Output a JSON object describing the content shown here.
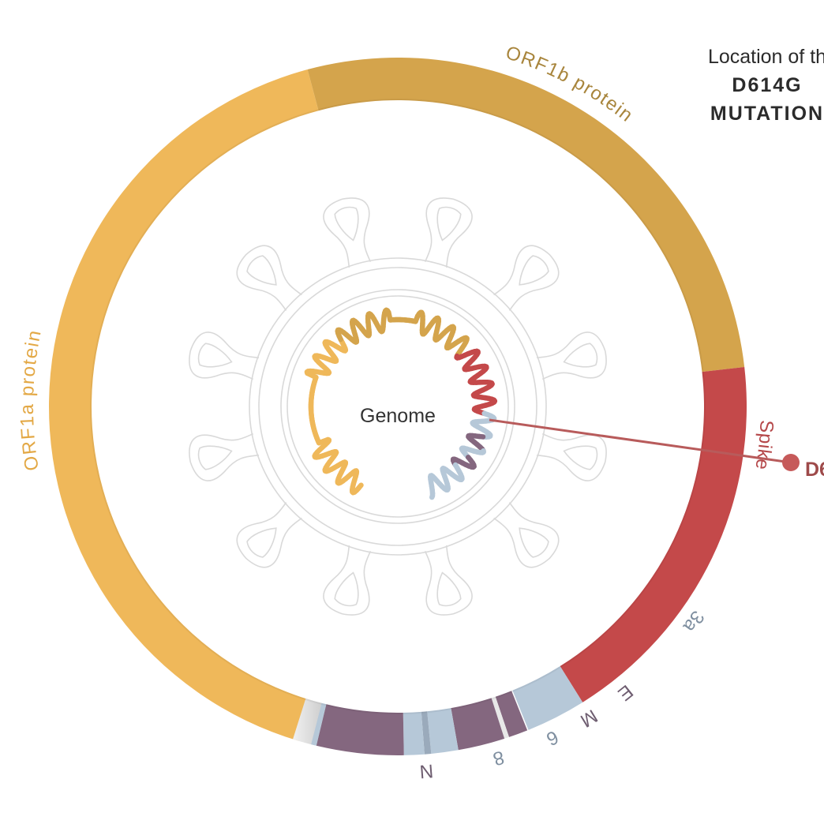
{
  "caption": {
    "line1": "Location of th",
    "line2": "D614G",
    "line3": "MUTATION"
  },
  "center_label": "Genome",
  "mutation_label": "D6",
  "segments": [
    {
      "id": "orf1a",
      "label": "ORF1a protein",
      "color": "#efb85a"
    },
    {
      "id": "orf1b",
      "label": "ORF1b protein",
      "color": "#d4a44c"
    },
    {
      "id": "spike",
      "label": "Spike",
      "color": "#c4494a"
    },
    {
      "id": "3a",
      "label": "3a",
      "color": "#b6c8d8"
    },
    {
      "id": "e",
      "label": "E",
      "color": "#8a7088"
    },
    {
      "id": "m",
      "label": "M",
      "color": "#8a7088"
    },
    {
      "id": "6",
      "label": "6",
      "color": "#b6c8d8"
    },
    {
      "id": "8",
      "label": "8",
      "color": "#b6c8d8"
    },
    {
      "id": "n",
      "label": "N",
      "color": "#84677f"
    }
  ],
  "colors": {
    "orf1a": "#efb85a",
    "orf1b": "#d4a44c",
    "spike": "#c4494a",
    "accessory_light": "#b6c8d8",
    "accessory_dark": "#84677f",
    "label_orf1a": "#e3a845",
    "label_orf1b": "#a8853c",
    "label_spike": "#b5484a",
    "label_small": "#7f8fa0",
    "mutation": "#b85b5b",
    "virus_outline": "#d8d8d8",
    "end_cap": "#e2e2e2"
  }
}
